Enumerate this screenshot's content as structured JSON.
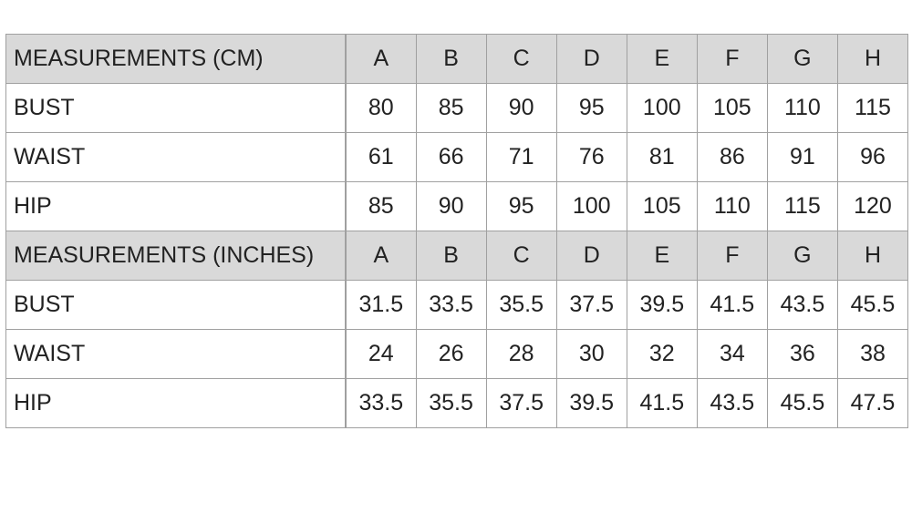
{
  "sections": [
    {
      "header": {
        "label": "MEASUREMENTS (CM)",
        "columns": [
          "A",
          "B",
          "C",
          "D",
          "E",
          "F",
          "G",
          "H"
        ]
      },
      "rows": [
        {
          "label": "BUST",
          "values": [
            80,
            85,
            90,
            95,
            100,
            105,
            110,
            115
          ]
        },
        {
          "label": "WAIST",
          "values": [
            61,
            66,
            71,
            76,
            81,
            86,
            91,
            96
          ]
        },
        {
          "label": "HIP",
          "values": [
            85,
            90,
            95,
            100,
            105,
            110,
            115,
            120
          ]
        }
      ]
    },
    {
      "header": {
        "label": "MEASUREMENTS (INCHES)",
        "columns": [
          "A",
          "B",
          "C",
          "D",
          "E",
          "F",
          "G",
          "H"
        ]
      },
      "rows": [
        {
          "label": "BUST",
          "values": [
            31.5,
            33.5,
            35.5,
            37.5,
            39.5,
            41.5,
            43.5,
            45.5
          ]
        },
        {
          "label": "WAIST",
          "values": [
            24,
            26,
            28,
            30,
            32,
            34,
            36,
            38
          ]
        },
        {
          "label": "HIP",
          "values": [
            33.5,
            35.5,
            37.5,
            39.5,
            41.5,
            43.5,
            45.5,
            47.5
          ]
        }
      ]
    }
  ]
}
